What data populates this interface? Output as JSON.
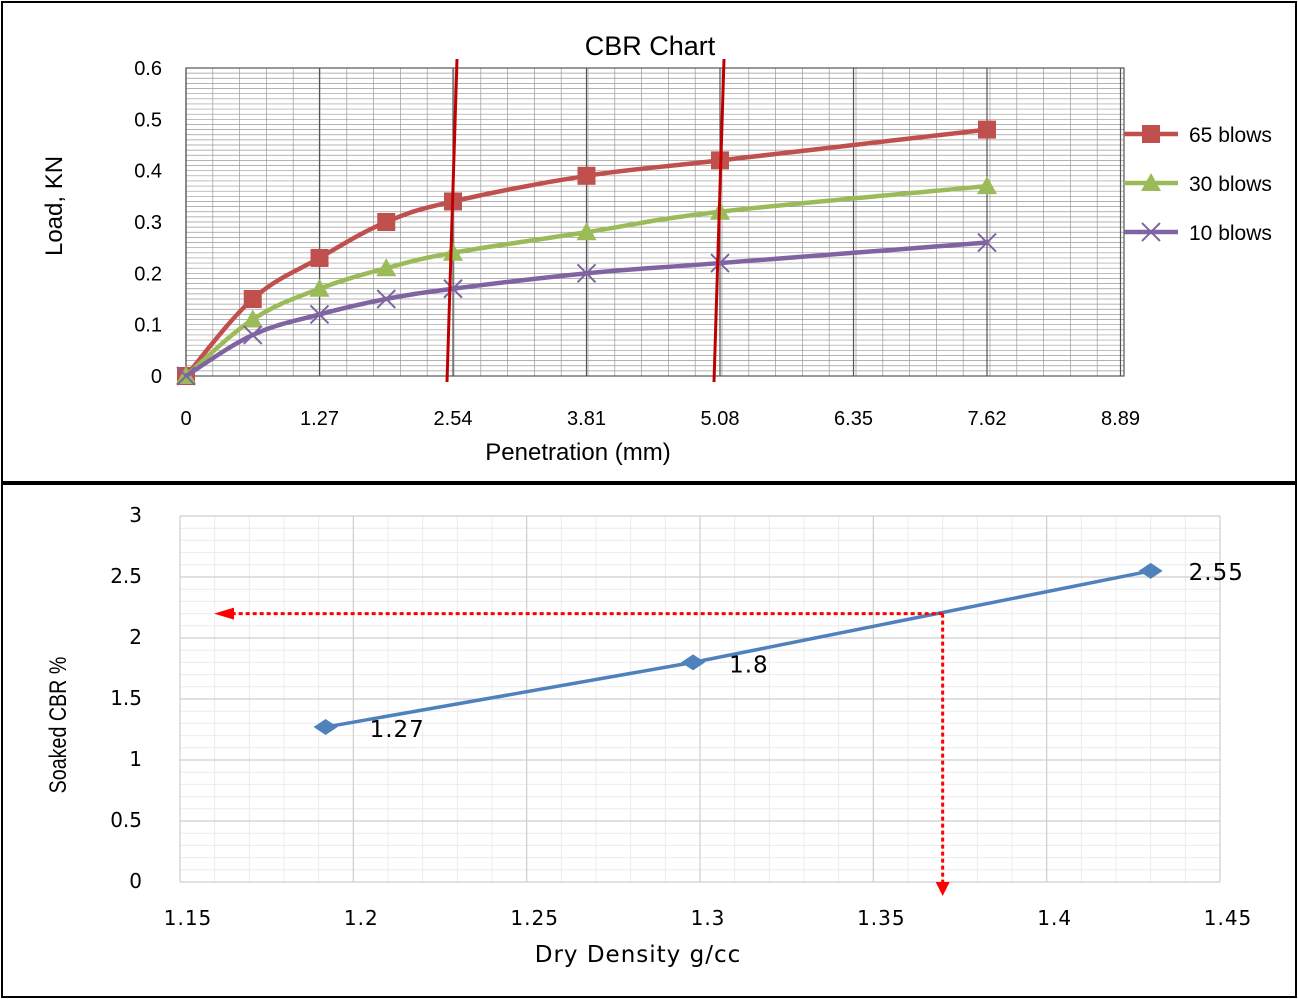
{
  "chart_data": [
    {
      "type": "line",
      "title": "CBR Chart",
      "xlabel": "Penetration (mm)",
      "ylabel": "Load, KN",
      "x_ticks": [
        "0",
        "1.27",
        "2.54",
        "3.81",
        "5.08",
        "6.35",
        "7.62",
        "8.89"
      ],
      "y_ticks": [
        "0",
        "0.1",
        "0.2",
        "0.3",
        "0.4",
        "0.5",
        "0.6"
      ],
      "xlim": [
        0,
        8.89
      ],
      "ylim": [
        0,
        0.6
      ],
      "grid": true,
      "legend_position": "right",
      "series": [
        {
          "name": "65 blows",
          "color": "#C0504D",
          "marker": "square",
          "x": [
            0,
            0.635,
            1.27,
            1.905,
            2.54,
            3.81,
            5.08,
            7.62
          ],
          "y": [
            0,
            0.15,
            0.23,
            0.3,
            0.34,
            0.39,
            0.42,
            0.48
          ]
        },
        {
          "name": "30 blows",
          "color": "#9BBB59",
          "marker": "triangle",
          "x": [
            0,
            0.635,
            1.27,
            1.905,
            2.54,
            3.81,
            5.08,
            7.62
          ],
          "y": [
            0,
            0.11,
            0.17,
            0.21,
            0.24,
            0.28,
            0.32,
            0.37
          ]
        },
        {
          "name": "10 blows",
          "color": "#8064A2",
          "marker": "x",
          "x": [
            0,
            0.635,
            1.27,
            1.905,
            2.54,
            3.81,
            5.08,
            7.62
          ],
          "y": [
            0,
            0.08,
            0.12,
            0.15,
            0.17,
            0.2,
            0.22,
            0.26
          ]
        }
      ],
      "reference_lines": {
        "x": [
          2.54,
          5.08
        ],
        "color": "#C00000"
      }
    },
    {
      "type": "line",
      "title": "",
      "xlabel": "Dry Density g/cc",
      "ylabel": "Soaked CBR %",
      "x_ticks": [
        "1.15",
        "1.2",
        "1.25",
        "1.3",
        "1.35",
        "1.4",
        "1.45"
      ],
      "y_ticks": [
        "0",
        "0.5",
        "1",
        "1.5",
        "2",
        "2.5",
        "3"
      ],
      "xlim": [
        1.15,
        1.45
      ],
      "ylim": [
        0,
        3
      ],
      "grid": true,
      "series": [
        {
          "color": "#4F81BD",
          "marker": "diamond",
          "x": [
            1.192,
            1.298,
            1.43
          ],
          "y": [
            1.27,
            1.8,
            2.55
          ],
          "labels": [
            "1.27",
            "1.8",
            "2.55"
          ]
        }
      ],
      "reference_lines": {
        "color": "#FF0000",
        "x": 1.37,
        "y": 2.2
      }
    }
  ]
}
